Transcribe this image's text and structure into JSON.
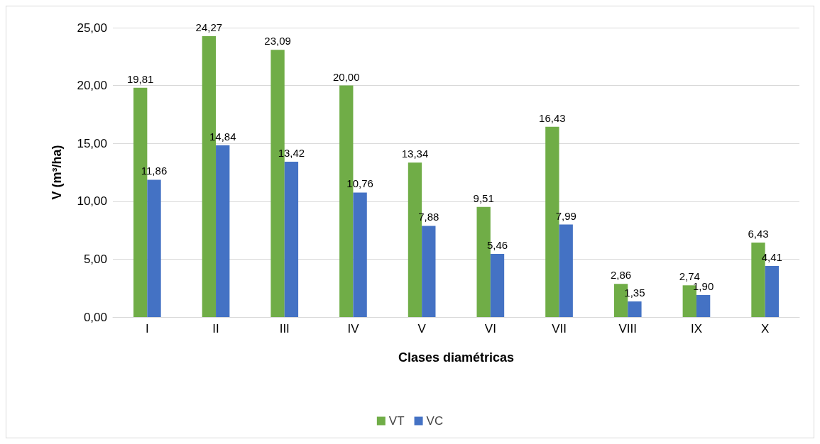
{
  "chart_data": {
    "type": "bar",
    "xlabel": "Clases diamétricas",
    "ylabel": "V (m³/ha)",
    "categories": [
      "I",
      "II",
      "III",
      "IV",
      "V",
      "VI",
      "VII",
      "VIII",
      "IX",
      "X"
    ],
    "series": [
      {
        "name": "VT",
        "color": "#70ad47",
        "values": [
          19.81,
          24.27,
          23.09,
          20.0,
          13.34,
          9.51,
          16.43,
          2.86,
          2.74,
          6.43
        ],
        "value_labels": [
          "19,81",
          "24,27",
          "23,09",
          "20,00",
          "13,34",
          "9,51",
          "16,43",
          "2,86",
          "2,74",
          "6,43"
        ]
      },
      {
        "name": "VC",
        "color": "#4472c4",
        "values": [
          11.86,
          14.84,
          13.42,
          10.76,
          7.88,
          5.46,
          7.99,
          1.35,
          1.9,
          4.41
        ],
        "value_labels": [
          "11,86",
          "14,84",
          "13,42",
          "10,76",
          "7,88",
          "5,46",
          "7,99",
          "1,35",
          "1,90",
          "4,41"
        ]
      }
    ],
    "ylim": [
      0,
      25
    ],
    "yticks": [
      {
        "value": 0,
        "label": "0,00"
      },
      {
        "value": 5,
        "label": "5,00"
      },
      {
        "value": 10,
        "label": "10,00"
      },
      {
        "value": 15,
        "label": "15,00"
      },
      {
        "value": 20,
        "label": "20,00"
      },
      {
        "value": 25,
        "label": "25,00"
      }
    ],
    "grid": "y",
    "legend": "bottom"
  }
}
